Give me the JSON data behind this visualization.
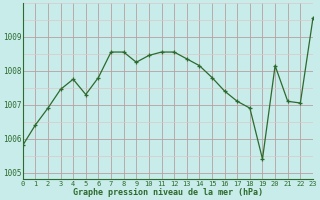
{
  "x": [
    0,
    1,
    2,
    3,
    4,
    5,
    6,
    7,
    8,
    9,
    10,
    11,
    12,
    13,
    14,
    15,
    16,
    17,
    18,
    19,
    20,
    21,
    22,
    23
  ],
  "y": [
    1005.8,
    1006.4,
    1006.9,
    1007.45,
    1007.75,
    1007.3,
    1007.8,
    1008.55,
    1008.55,
    1008.25,
    1008.45,
    1008.55,
    1008.55,
    1008.35,
    1008.15,
    1007.8,
    1007.4,
    1007.1,
    1006.9,
    1005.4,
    1008.15,
    1007.1,
    1007.05,
    1009.55
  ],
  "line_color": "#2d6a2d",
  "marker": "+",
  "marker_color": "#2d6a2d",
  "bg_color": "#c8ecea",
  "grid_major_color": "#b8a0a0",
  "grid_minor_color": "#dcc8c8",
  "xlabel": "Graphe pression niveau de la mer (hPa)",
  "xlabel_color": "#2d6a2d",
  "tick_color": "#2d6a2d",
  "axis_color": "#2d6a2d",
  "ylim": [
    1004.8,
    1010.0
  ],
  "xlim": [
    0,
    23
  ],
  "yticks": [
    1005,
    1006,
    1007,
    1008,
    1009
  ],
  "xticks": [
    0,
    1,
    2,
    3,
    4,
    5,
    6,
    7,
    8,
    9,
    10,
    11,
    12,
    13,
    14,
    15,
    16,
    17,
    18,
    19,
    20,
    21,
    22,
    23
  ],
  "xtick_labels": [
    "0",
    "1",
    "2",
    "3",
    "4",
    "5",
    "6",
    "7",
    "8",
    "9",
    "10",
    "11",
    "12",
    "13",
    "14",
    "15",
    "16",
    "17",
    "18",
    "19",
    "20",
    "21",
    "22",
    "23"
  ]
}
